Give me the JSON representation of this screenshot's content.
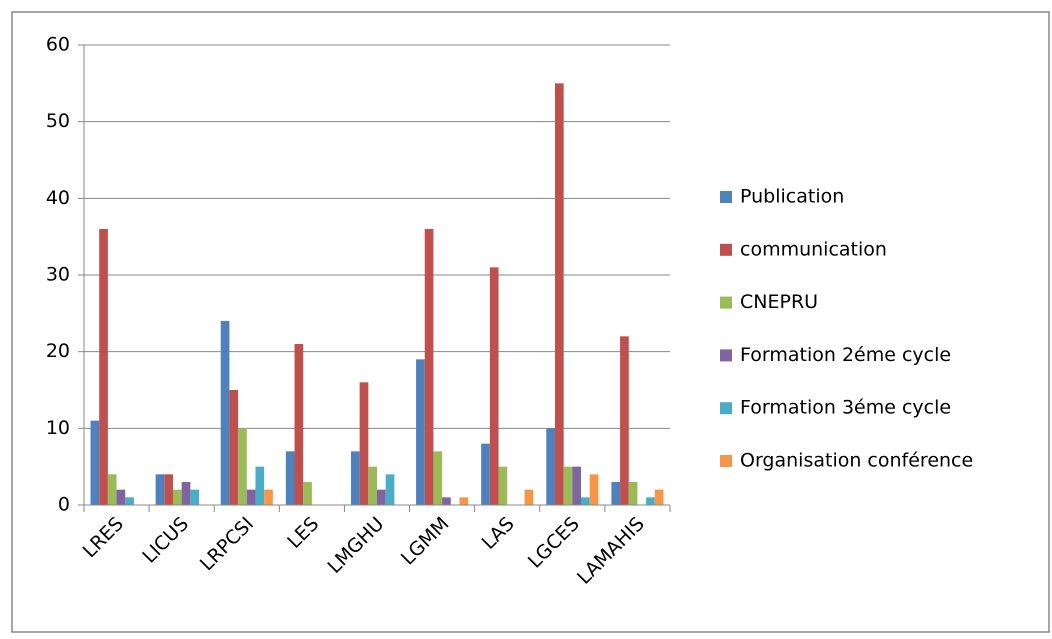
{
  "chart_data": {
    "type": "bar",
    "categories": [
      "LRES",
      "LICUS",
      "LRPCSI",
      "LES",
      "LMGHU",
      "LGMM",
      "LAS",
      "LGCES",
      "LAMAHIS"
    ],
    "series": [
      {
        "name": "Publication",
        "color": "#4F81BD",
        "values": [
          11,
          4,
          24,
          7,
          7,
          19,
          8,
          10,
          3
        ]
      },
      {
        "name": "communication",
        "color": "#C0504D",
        "values": [
          36,
          4,
          15,
          21,
          16,
          36,
          31,
          55,
          22
        ]
      },
      {
        "name": "CNEPRU",
        "color": "#9BBB59",
        "values": [
          4,
          2,
          10,
          3,
          5,
          7,
          5,
          5,
          3
        ]
      },
      {
        "name": "Formation 2éme cycle",
        "color": "#8064A2",
        "values": [
          2,
          3,
          2,
          0,
          2,
          1,
          0,
          5,
          0
        ]
      },
      {
        "name": "Formation 3éme cycle",
        "color": "#4BACC6",
        "values": [
          1,
          2,
          5,
          0,
          4,
          0,
          0,
          1,
          1
        ]
      },
      {
        "name": "Organisation conférence",
        "color": "#F79646",
        "values": [
          0,
          0,
          2,
          0,
          0,
          1,
          2,
          4,
          2
        ]
      }
    ],
    "ylim": [
      0,
      60
    ],
    "yticks": [
      0,
      10,
      20,
      30,
      40,
      50,
      60
    ],
    "grid": true,
    "legend": "right"
  }
}
